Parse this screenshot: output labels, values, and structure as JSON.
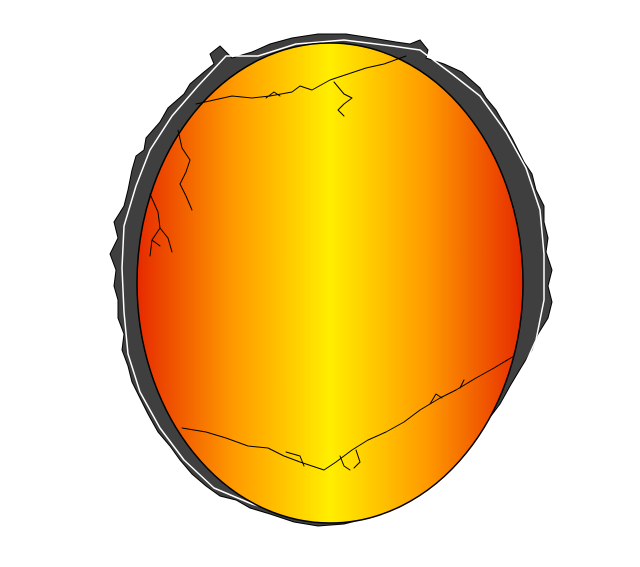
{
  "illustration": {
    "subject": "cracked-egg-icon",
    "colors": {
      "background": "#ffffff",
      "shell_edge": "#3f3f3f",
      "shell_highlight": "#ffffff",
      "outline": "#000000",
      "gradient_edge": "#e62a00",
      "gradient_mid": "#ff9a00",
      "gradient_center": "#ffee00",
      "crack_lines": "#000000"
    }
  }
}
